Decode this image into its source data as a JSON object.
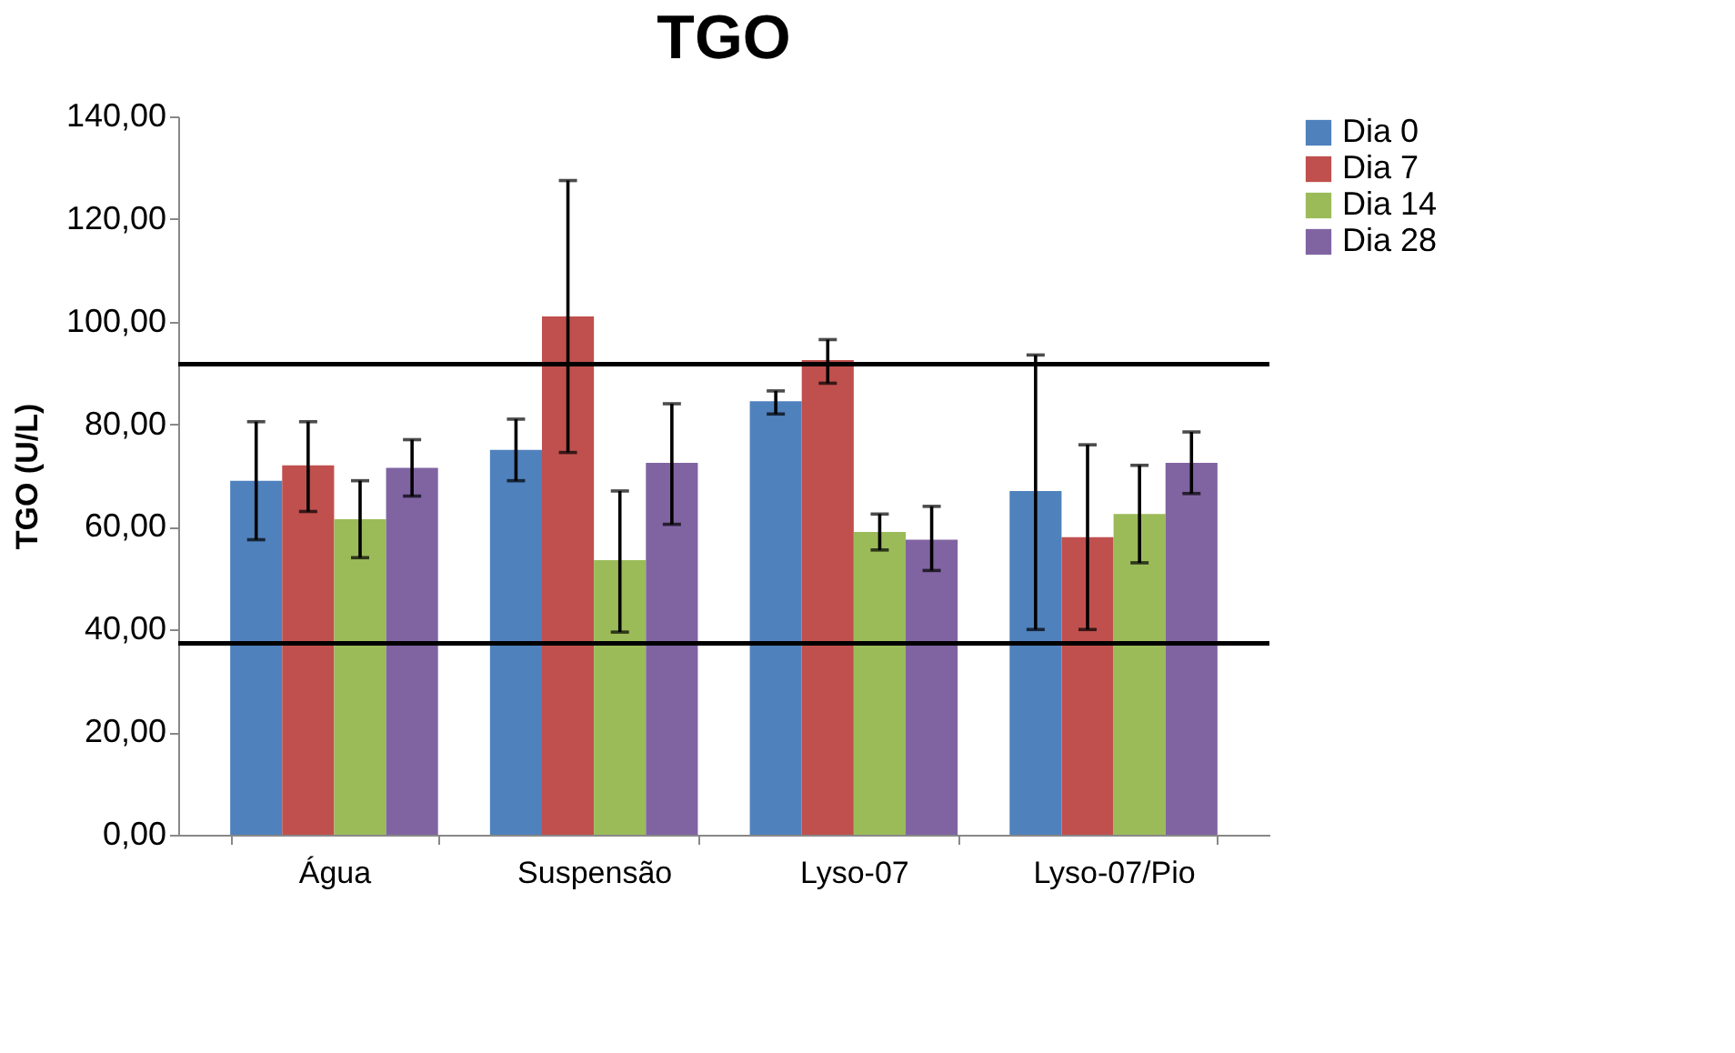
{
  "chart_data": {
    "type": "bar",
    "title": "TGO",
    "ylabel": "TGO (U/L)",
    "categories": [
      "Água",
      "Suspensão",
      "Lyso-07",
      "Lyso-07/Pio"
    ],
    "series": [
      {
        "name": "Dia 0",
        "color": "#4f81bd",
        "values": [
          69,
          75,
          84.5,
          67
        ],
        "errors": [
          [
            57.5,
            80.5
          ],
          [
            69,
            81
          ],
          [
            82,
            86.5
          ],
          [
            40,
            93.5
          ]
        ]
      },
      {
        "name": "Dia 7",
        "color": "#c0504d",
        "values": [
          72,
          101,
          92.5,
          58
        ],
        "errors": [
          [
            63,
            80.5
          ],
          [
            74.5,
            127.5
          ],
          [
            88,
            96.5
          ],
          [
            40,
            76
          ]
        ]
      },
      {
        "name": "Dia 14",
        "color": "#9bbb59",
        "values": [
          61.5,
          53.5,
          59,
          62.5
        ],
        "errors": [
          [
            54,
            69
          ],
          [
            39.5,
            67
          ],
          [
            55.5,
            62.5
          ],
          [
            53,
            72
          ]
        ]
      },
      {
        "name": "Dia 28",
        "color": "#8064a2",
        "values": [
          71.5,
          72.5,
          57.5,
          72.5
        ],
        "errors": [
          [
            66,
            77
          ],
          [
            60.5,
            84
          ],
          [
            51.5,
            64
          ],
          [
            66.5,
            78.5
          ]
        ]
      }
    ],
    "ylim": [
      0,
      140
    ],
    "yticks": [
      {
        "value": 0,
        "label": "0,00"
      },
      {
        "value": 20,
        "label": "20,00"
      },
      {
        "value": 40,
        "label": "40,00"
      },
      {
        "value": 60,
        "label": "60,00"
      },
      {
        "value": 80,
        "label": "80,00"
      },
      {
        "value": 100,
        "label": "100,00"
      },
      {
        "value": 120,
        "label": "120,00"
      },
      {
        "value": 140,
        "label": "140,00"
      }
    ],
    "ref_lines": [
      {
        "axis": "y",
        "value": 91.7,
        "color": "#000000"
      },
      {
        "axis": "y",
        "value": 37.3,
        "color": "#000000"
      }
    ],
    "grid": false,
    "legend": "right"
  }
}
